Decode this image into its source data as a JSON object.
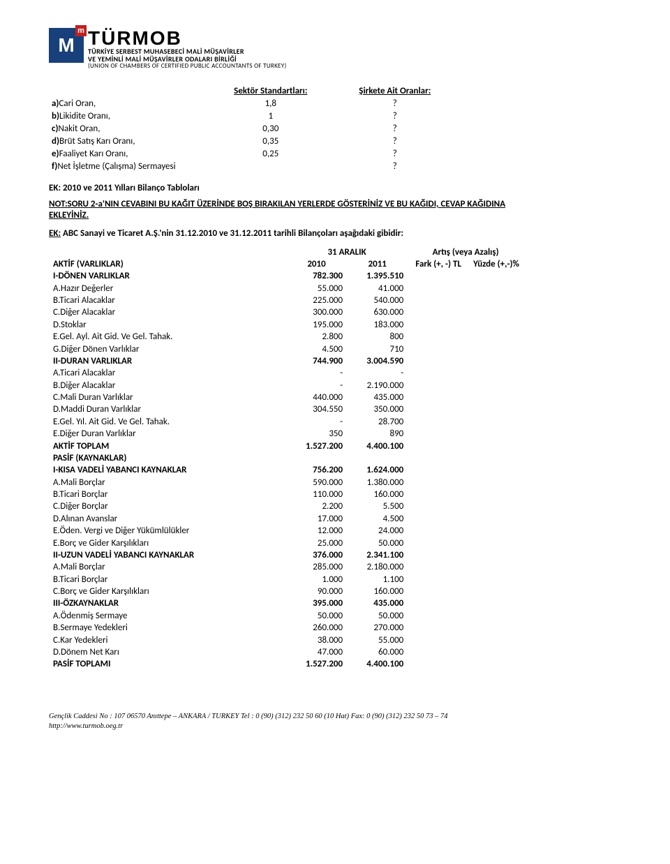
{
  "logo": {
    "mark_letter": "M",
    "brand": "TÜRMOB",
    "line1": "TÜRKİYE  SERBEST  MUHASEBECİ  MALİ  MÜŞAVİRLER",
    "line2": "VE YEMİNLİ  MALİ  MÜŞAVİRLER  ODALARI  BİRLİĞİ",
    "line3": "(UNION OF CHAMBERS OF CERTIFIED PUBLIC ACCOUNTANTS OF TURKEY)"
  },
  "ratios": {
    "header_col2": "Sektör Standartları:",
    "header_col3": "Şirkete Ait Oranlar:",
    "rows": [
      {
        "label": "a)Cari Oran,",
        "std": "1,8",
        "company": "?"
      },
      {
        "label": "b)Likidite Oranı,",
        "std": "1",
        "company": "?"
      },
      {
        "label": "c)Nakit Oran,",
        "std": "0,30",
        "company": "?"
      },
      {
        "label": "d)Brüt Satış Karı Oranı,",
        "std": "0,35",
        "company": "?"
      },
      {
        "label": "e)Faaliyet Karı Oranı,",
        "std": "0,25",
        "company": "?"
      },
      {
        "label": "f)Net İşletme (Çalışma) Sermayesi",
        "std": "",
        "company": "?"
      }
    ]
  },
  "section_title": "EK: 2010 ve 2011 Yılları Bilanço Tabloları",
  "note_text": "NOT:SORU 2-a'NIN CEVABINI BU KAĞIT ÜZERİNDE BOŞ BIRAKILAN YERLERDE GÖSTERİNİZ VE BU KAĞIDI, CEVAP KAĞIDINA EKLEYİNİZ.",
  "ek_line": "EK:  ABC Sanayi ve Ticaret A.Ş.'nin 31.12.2010 ve 31.12.2011 tarihli Bilançoları aşağıdaki gibidir:",
  "bs": {
    "super_left": "31 ARALIK",
    "super_right": "Artış (veya Azalış)",
    "headers": [
      "AKTİF (VARLIKLAR)",
      "2010",
      "2011",
      "Fark (+, -) TL",
      "Yüzde (+,-)%"
    ],
    "rows": [
      {
        "label": "I-DÖNEN VARLIKLAR",
        "v1": "782.300",
        "v2": "1.395.510",
        "bold": true
      },
      {
        "label": "A.Hazır Değerler",
        "v1": "55.000",
        "v2": "41.000"
      },
      {
        "label": "B.Ticari Alacaklar",
        "v1": "225.000",
        "v2": "540.000"
      },
      {
        "label": "C.Diğer Alacaklar",
        "v1": "300.000",
        "v2": "630.000"
      },
      {
        "label": "D.Stoklar",
        "v1": "195.000",
        "v2": "183.000"
      },
      {
        "label": "E.Gel. Ayl. Ait Gid. Ve Gel. Tahak.",
        "v1": "2.800",
        "v2": "800"
      },
      {
        "label": "G.Diğer Dönen Varlıklar",
        "v1": "4.500",
        "v2": "710"
      },
      {
        "label": "II-DURAN VARLIKLAR",
        "v1": "744.900",
        "v2": "3.004.590",
        "bold": true
      },
      {
        "label": "A.Ticari Alacaklar",
        "v1": "-",
        "v2": "-"
      },
      {
        "label": "B.Diğer Alacaklar",
        "v1": "-",
        "v2": "2.190.000"
      },
      {
        "label": "C.Mali Duran Varlıklar",
        "v1": "440.000",
        "v2": "435.000"
      },
      {
        "label": "D.Maddi Duran Varlıklar",
        "v1": "304.550",
        "v2": "350.000"
      },
      {
        "label": "E.Gel. Yıl. Ait Gid. Ve Gel. Tahak.",
        "v1": "-",
        "v2": "28.700"
      },
      {
        "label": "E.Diğer Duran Varlıklar",
        "v1": "350",
        "v2": "890"
      },
      {
        "label": "AKTİF TOPLAM",
        "v1": "1.527.200",
        "v2": "4.400.100",
        "bold": true
      },
      {
        "label": "PASİF (KAYNAKLAR)",
        "v1": "",
        "v2": "",
        "bold": true
      },
      {
        "label": "I-KISA VADELİ YABANCI KAYNAKLAR",
        "v1": "756.200",
        "v2": "1.624.000",
        "bold": true
      },
      {
        "label": "A.Mali Borçlar",
        "v1": "590.000",
        "v2": "1.380.000"
      },
      {
        "label": "B.Ticari Borçlar",
        "v1": "110.000",
        "v2": "160.000"
      },
      {
        "label": "C.Diğer Borçlar",
        "v1": "2.200",
        "v2": "5.500"
      },
      {
        "label": "D.Alınan Avanslar",
        "v1": "17.000",
        "v2": "4.500"
      },
      {
        "label": "E.Öden. Vergi ve Diğer Yükümlülükler",
        "v1": "12.000",
        "v2": "24.000"
      },
      {
        "label": "E.Borç ve Gider Karşılıkları",
        "v1": "25.000",
        "v2": "50.000"
      },
      {
        "label": "II-UZUN VADELİ YABANCI KAYNAKLAR",
        "v1": "376.000",
        "v2": "2.341.100",
        "bold": true
      },
      {
        "label": "A.Mali Borçlar",
        "v1": "285.000",
        "v2": "2.180.000"
      },
      {
        "label": "B.Ticari Borçlar",
        "v1": "1.000",
        "v2": "1.100"
      },
      {
        "label": "C.Borç ve Gider Karşılıkları",
        "v1": "90.000",
        "v2": "160.000"
      },
      {
        "label": "III-ÖZKAYNAKLAR",
        "v1": "395.000",
        "v2": "435.000",
        "bold": true
      },
      {
        "label": "A.Ödenmiş Sermaye",
        "v1": "50.000",
        "v2": "50.000"
      },
      {
        "label": "B.Sermaye Yedekleri",
        "v1": "260.000",
        "v2": "270.000"
      },
      {
        "label": "C.Kar Yedekleri",
        "v1": "38.000",
        "v2": "55.000"
      },
      {
        "label": "D.Dönem Net Karı",
        "v1": "47.000",
        "v2": "60.000"
      },
      {
        "label": "PASİF TOPLAMI",
        "v1": "1.527.200",
        "v2": "4.400.100",
        "bold": true
      }
    ]
  },
  "footer": {
    "line1": "Gençlik Caddesi No : 107    06570  Anıttepe – ANKARA / TURKEY   Tel : 0 (90) (312) 232 50 60 (10 Hat)  Fax: 0 (90) (312) 232 50 73 – 74",
    "line2": "http://www.turmob.oeg.tr"
  },
  "labels": {
    "ek_underline": "EK:"
  }
}
